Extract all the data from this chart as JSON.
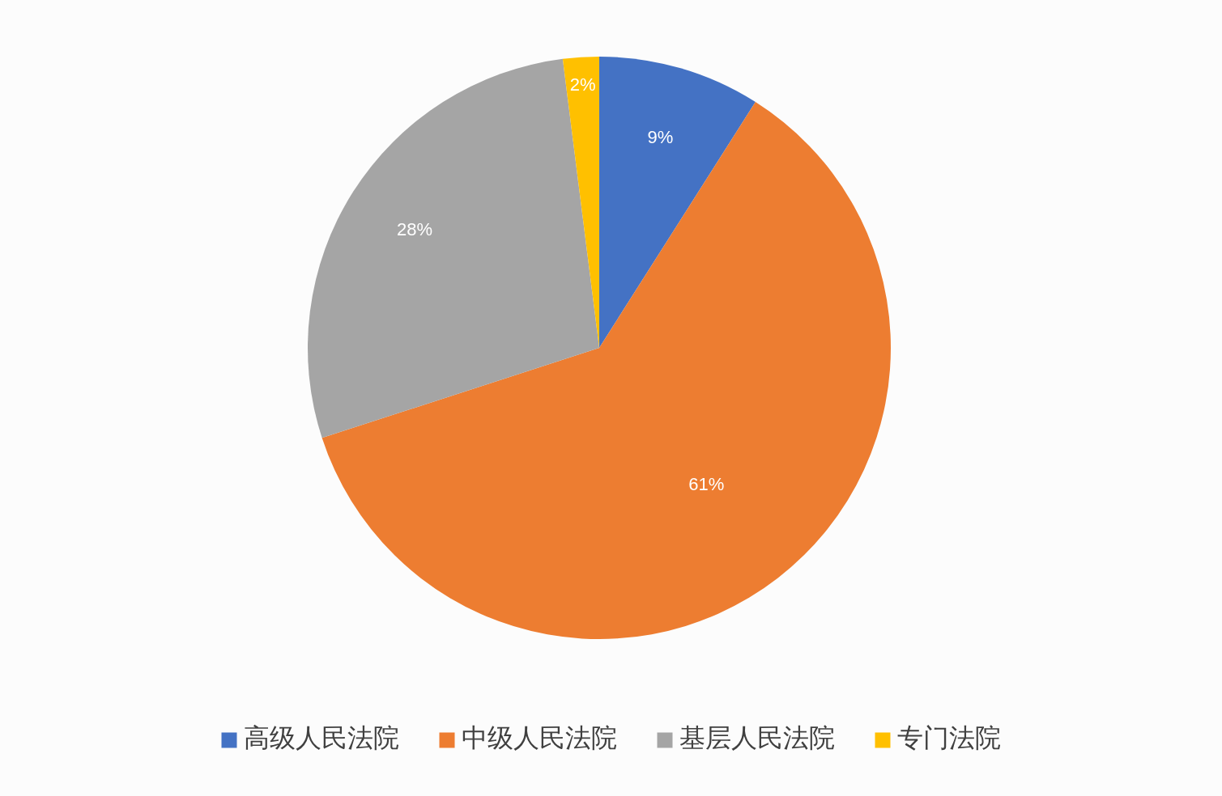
{
  "chart_data": {
    "type": "pie",
    "categories": [
      "高级人民法院",
      "中级人民法院",
      "基层人民法院",
      "专门法院"
    ],
    "values": [
      9,
      61,
      28,
      2
    ],
    "colors": [
      "#4472c4",
      "#ed7d31",
      "#a5a5a5",
      "#ffc000"
    ],
    "value_labels": [
      "9%",
      "61%",
      "28%",
      "2%"
    ],
    "legend": "bottom"
  }
}
